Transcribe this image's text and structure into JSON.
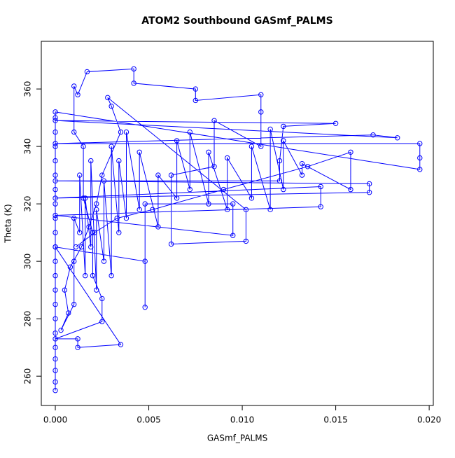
{
  "chart_data": {
    "type": "scatter",
    "lines": true,
    "title": "ATOM2 Southbound GASmf_PALMS",
    "x_label": "GASmf_PALMS",
    "y_label": "Theta (K)",
    "xlim": [
      -0.00075,
      0.02022
    ],
    "ylim": [
      249.8,
      376.6
    ],
    "xticks": [
      {
        "value": 0,
        "label": "0.000"
      },
      {
        "value": 0.005,
        "label": "0.005"
      },
      {
        "value": 0.01,
        "label": "0.010"
      },
      {
        "value": 0.015,
        "label": "0.015"
      },
      {
        "value": 0.02,
        "label": "0.020"
      }
    ],
    "yticks": [
      260,
      280,
      300,
      320,
      340,
      360
    ],
    "series": [
      {
        "name": "GASmf_PALMS",
        "color": "#0000ff",
        "x": [
          0,
          0,
          0,
          0,
          0,
          0,
          0,
          0,
          0,
          0,
          0,
          0,
          0,
          0,
          0,
          0,
          0,
          0,
          0,
          0,
          0,
          0,
          0.0195,
          0.0195,
          0.0195,
          0,
          0.017,
          0.0183,
          0,
          0.015,
          0.0122,
          0.012,
          0.012,
          0,
          0.0168,
          0.0168,
          0,
          0.0142,
          0.0142,
          0,
          0.0095,
          0.0095,
          0.0048,
          0.0048,
          0.0048,
          0,
          0.0035,
          0.0012,
          0.0012,
          0,
          0.0025,
          0.0025,
          0.002,
          0.002,
          0.0015,
          0.0015,
          0.001,
          0.001,
          0.0012,
          0.0017,
          0.0042,
          0.0042,
          0.0075,
          0.0075,
          0.011,
          0.011,
          0.011,
          0.0085,
          0.0085,
          0.0062,
          0.0062,
          0.0102,
          0.0102,
          0.0028,
          0.003,
          0.0035,
          0.0025,
          0.0022,
          0.0018,
          0.0014,
          0.0008,
          0.0005,
          0.0007,
          0.0003,
          0.001,
          0.001,
          0.001,
          0.0013,
          0.0013,
          0.0016,
          0.0016,
          0.0019,
          0.0019,
          0.0022,
          0.0022,
          0.0026,
          0.0026,
          0.003,
          0.003,
          0.0034,
          0.0034,
          0.0038,
          0.0038,
          0.0045,
          0.0045,
          0.0055,
          0.0055,
          0.0065,
          0.0065,
          0.0072,
          0.0072,
          0.0082,
          0.0082,
          0.0092,
          0.0092,
          0.0105,
          0.0105,
          0.0115,
          0.0115,
          0.0122,
          0.0122,
          0.0132,
          0.0132,
          0.0158,
          0.0158,
          0.0135,
          0.009,
          0.0052,
          0.0033,
          0.0021,
          0.0011
        ],
        "y": [
          255,
          258,
          262,
          266,
          270,
          275,
          280,
          285,
          290,
          295,
          300,
          305,
          310,
          315,
          320,
          325,
          330,
          335,
          340,
          345,
          350,
          352,
          332,
          336,
          341,
          341,
          344,
          343,
          349,
          348,
          347,
          335,
          328,
          328,
          327,
          324,
          322,
          326,
          319,
          316,
          309,
          320,
          320,
          284,
          300,
          305,
          271,
          270,
          273,
          273,
          279,
          287,
          295,
          310,
          322,
          340,
          345,
          361,
          358,
          366,
          367,
          362,
          360,
          356,
          358,
          352,
          340,
          349,
          333,
          330,
          306,
          307,
          318,
          357,
          354,
          345,
          330,
          320,
          312,
          305,
          298,
          290,
          282,
          276,
          285,
          300,
          315,
          310,
          330,
          295,
          322,
          305,
          335,
          290,
          318,
          300,
          328,
          295,
          340,
          310,
          335,
          315,
          345,
          318,
          338,
          312,
          330,
          322,
          342,
          325,
          345,
          320,
          338,
          318,
          336,
          322,
          340,
          318,
          346,
          325,
          342,
          330,
          334,
          325,
          338,
          333,
          325,
          318,
          315,
          310,
          305
        ],
        "marker": "circle"
      }
    ]
  }
}
